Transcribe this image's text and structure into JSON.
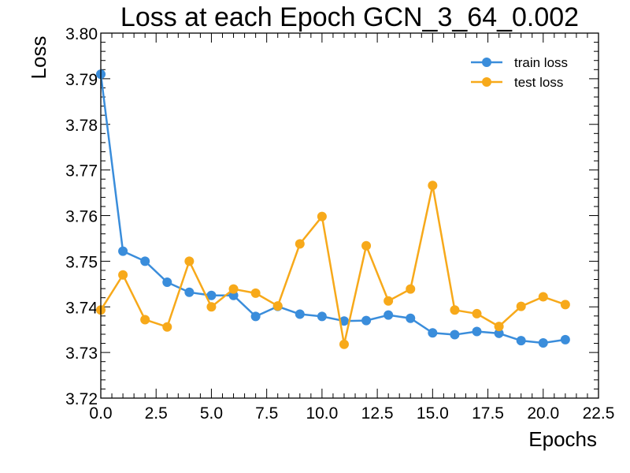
{
  "chart_data": {
    "type": "line",
    "title": "Loss at each Epoch GCN_3_64_0.002",
    "xlabel": "Epochs",
    "ylabel": "Loss",
    "xlim": [
      0,
      22.5
    ],
    "ylim": [
      3.72,
      3.8
    ],
    "x_ticks": [
      "0.0",
      "2.5",
      "5.0",
      "7.5",
      "10.0",
      "12.5",
      "15.0",
      "17.5",
      "20.0",
      "22.5"
    ],
    "y_ticks": [
      "3.72",
      "3.73",
      "3.74",
      "3.75",
      "3.76",
      "3.77",
      "3.78",
      "3.79",
      "3.80"
    ],
    "grid": false,
    "legend_position": "top-right",
    "x": [
      0,
      1,
      2,
      3,
      4,
      5,
      6,
      7,
      8,
      9,
      10,
      11,
      12,
      13,
      14,
      15,
      16,
      17,
      18,
      19,
      20,
      21
    ],
    "series": [
      {
        "name": "train loss",
        "color": "#3a8ddb",
        "values": [
          3.791,
          3.7522,
          3.75,
          3.7454,
          3.7432,
          3.7425,
          3.7425,
          3.7379,
          3.7401,
          3.7384,
          3.7379,
          3.7369,
          3.737,
          3.7382,
          3.7375,
          3.7343,
          3.7339,
          3.7346,
          3.7342,
          3.7326,
          3.7321,
          3.7328
        ]
      },
      {
        "name": "test loss",
        "color": "#f7a91a",
        "values": [
          3.7393,
          3.747,
          3.7372,
          3.7356,
          3.75,
          3.74,
          3.7439,
          3.743,
          3.7402,
          3.7538,
          3.7598,
          3.7318,
          3.7534,
          3.7413,
          3.7439,
          3.7666,
          3.7393,
          3.7385,
          3.7357,
          3.7401,
          3.7422,
          3.7405
        ]
      }
    ]
  }
}
